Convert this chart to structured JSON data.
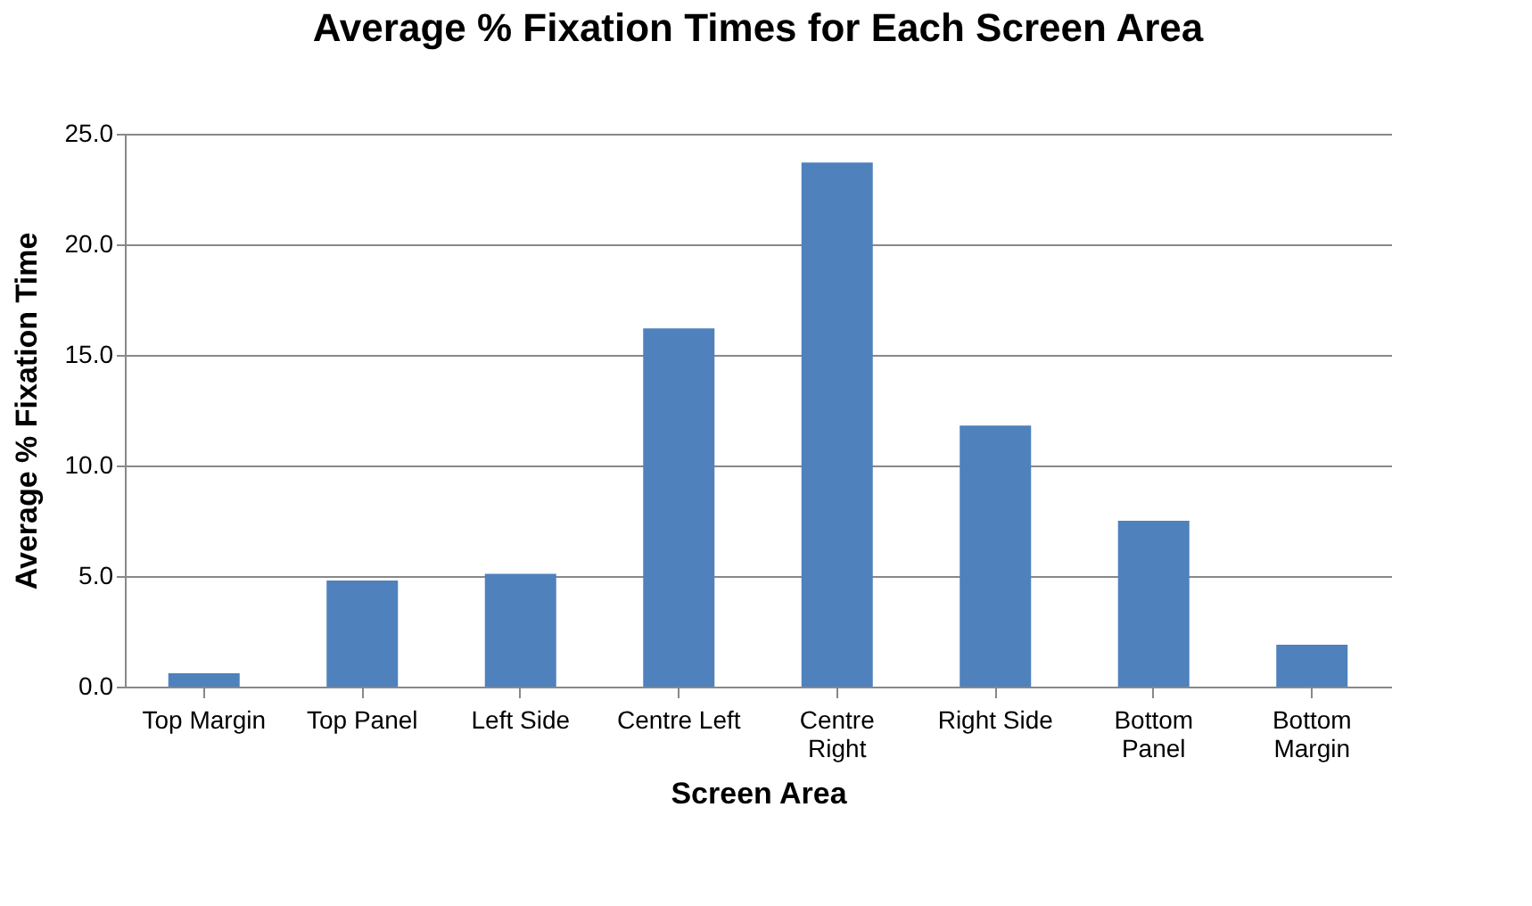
{
  "chart_data": {
    "type": "bar",
    "title": "Average % Fixation Times for Each Screen Area",
    "xlabel": "Screen Area",
    "ylabel": "Average % Fixation Time",
    "categories": [
      "Top Margin",
      "Top Panel",
      "Left Side",
      "Centre Left",
      "Centre Right",
      "Right Side",
      "Bottom Panel",
      "Bottom Margin"
    ],
    "values": [
      0.6,
      4.8,
      5.1,
      16.2,
      23.7,
      11.8,
      7.5,
      1.9
    ],
    "color": "#4f81bd",
    "ylim": [
      0,
      25
    ],
    "yticks": [
      {
        "value": 0,
        "label": "0.0"
      },
      {
        "value": 5,
        "label": "5.0"
      },
      {
        "value": 10,
        "label": "10.0"
      },
      {
        "value": 15,
        "label": "15.0"
      },
      {
        "value": 20,
        "label": "20.0"
      },
      {
        "value": 25,
        "label": "25.0"
      }
    ],
    "grid": "y"
  }
}
